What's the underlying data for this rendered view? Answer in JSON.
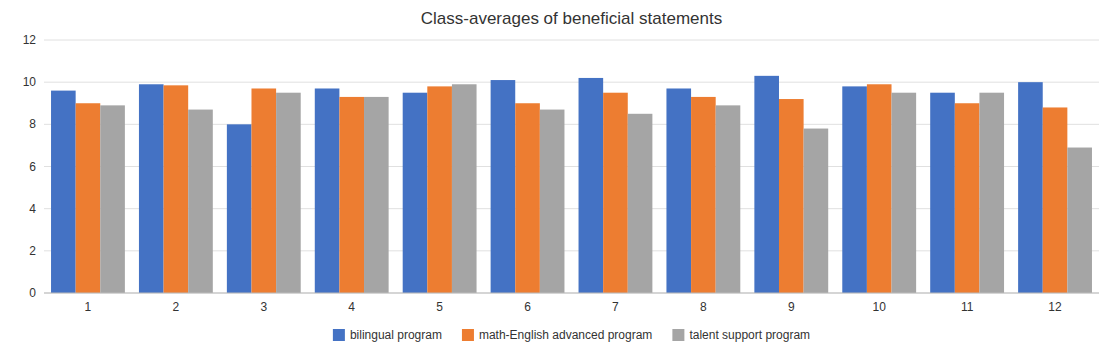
{
  "chart_data": {
    "type": "bar",
    "title": "Class-averages of beneficial statements",
    "categories": [
      1,
      2,
      3,
      4,
      5,
      6,
      7,
      8,
      9,
      10,
      11,
      12
    ],
    "series": [
      {
        "name": "bilingual program",
        "color": "#4472C4",
        "values": [
          9.6,
          9.9,
          8.0,
          9.7,
          9.5,
          10.1,
          10.2,
          9.7,
          10.3,
          9.8,
          9.5,
          10.0
        ]
      },
      {
        "name": "math-English advanced program",
        "color": "#ED7D31",
        "values": [
          9.0,
          9.85,
          9.7,
          9.3,
          9.8,
          9.0,
          9.5,
          9.3,
          9.2,
          9.9,
          9.0,
          8.8
        ]
      },
      {
        "name": "talent support program",
        "color": "#A5A5A5",
        "values": [
          8.9,
          8.7,
          9.5,
          9.3,
          9.9,
          8.7,
          8.5,
          8.9,
          7.8,
          9.5,
          9.5,
          6.9
        ]
      }
    ],
    "ylim": [
      0,
      12
    ],
    "yticks": [
      0,
      2,
      4,
      6,
      8,
      10,
      12
    ],
    "grid": true,
    "legend": "bottom"
  }
}
